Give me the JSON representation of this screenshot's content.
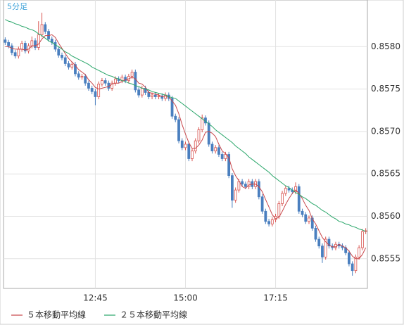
{
  "chart_data": {
    "type": "candlestick",
    "title": "5分足",
    "x": [
      "10:30",
      "10:35",
      "10:40",
      "10:45",
      "10:50",
      "10:55",
      "11:00",
      "11:05",
      "11:10",
      "11:15",
      "11:20",
      "11:25",
      "11:30",
      "11:35",
      "11:40",
      "11:45",
      "11:50",
      "11:55",
      "12:00",
      "12:05",
      "12:10",
      "12:15",
      "12:20",
      "12:25",
      "12:30",
      "12:35",
      "12:40",
      "12:45",
      "12:50",
      "12:55",
      "13:00",
      "13:05",
      "13:10",
      "13:15",
      "13:20",
      "13:25",
      "13:30",
      "13:35",
      "13:40",
      "13:45",
      "13:50",
      "13:55",
      "14:00",
      "14:05",
      "14:10",
      "14:15",
      "14:20",
      "14:25",
      "14:30",
      "14:35",
      "14:40",
      "14:45",
      "14:50",
      "14:55",
      "15:00",
      "15:05",
      "15:10",
      "15:15",
      "15:20",
      "15:25",
      "15:30",
      "15:35",
      "15:40",
      "15:45",
      "15:50",
      "15:55",
      "16:00",
      "16:05",
      "16:10",
      "16:15",
      "16:20",
      "16:25",
      "16:30",
      "16:35",
      "16:40",
      "16:45",
      "16:50",
      "16:55",
      "17:00",
      "17:05",
      "17:10",
      "17:15",
      "17:20",
      "17:25",
      "17:30",
      "17:35",
      "17:40",
      "17:45",
      "17:50",
      "17:55",
      "18:00",
      "18:05",
      "18:10",
      "18:15",
      "18:20",
      "18:25",
      "18:30",
      "18:35",
      "18:40",
      "18:45",
      "18:50",
      "18:55",
      "19:00",
      "19:05",
      "19:10",
      "19:15",
      "19:20",
      "19:25",
      "19:30"
    ],
    "open": [
      0.85808,
      0.85805,
      0.85801,
      0.85793,
      0.85789,
      0.85797,
      0.85804,
      0.85795,
      0.85801,
      0.85807,
      0.85799,
      0.85814,
      0.85826,
      0.85818,
      0.85809,
      0.85805,
      0.85797,
      0.8579,
      0.85787,
      0.8578,
      0.85776,
      0.85779,
      0.85768,
      0.85764,
      0.85765,
      0.85757,
      0.85751,
      0.85747,
      0.85741,
      0.85756,
      0.8576,
      0.85757,
      0.85751,
      0.85757,
      0.85762,
      0.8576,
      0.85764,
      0.8576,
      0.85765,
      0.8577,
      0.85749,
      0.85743,
      0.85751,
      0.85746,
      0.85741,
      0.85743,
      0.85741,
      0.85742,
      0.85739,
      0.85743,
      0.85739,
      0.85718,
      0.85714,
      0.85689,
      0.85681,
      0.85685,
      0.85668,
      0.85677,
      0.85689,
      0.85702,
      0.85716,
      0.8571,
      0.85685,
      0.85677,
      0.85681,
      0.85673,
      0.85668,
      0.85673,
      0.85648,
      0.85619,
      0.85631,
      0.85641,
      0.85638,
      0.85635,
      0.85641,
      0.85635,
      0.85641,
      0.85623,
      0.85606,
      0.85594,
      0.85591,
      0.85596,
      0.856,
      0.85615,
      0.85627,
      0.85633,
      0.85631,
      0.85629,
      0.85635,
      0.85606,
      0.85602,
      0.85594,
      0.85598,
      0.85586,
      0.85573,
      0.85565,
      0.85552,
      0.85573,
      0.85565,
      0.85563,
      0.85567,
      0.85565,
      0.85563,
      0.85557,
      0.85544,
      0.85536,
      0.85552,
      0.85563,
      0.85582
    ],
    "high": [
      0.85811,
      0.85808,
      0.85804,
      0.85796,
      0.858,
      0.85807,
      0.85807,
      0.85804,
      0.85812,
      0.8581,
      0.8583,
      0.8584,
      0.85829,
      0.85821,
      0.85812,
      0.85808,
      0.858,
      0.85793,
      0.8579,
      0.85783,
      0.85782,
      0.85782,
      0.85771,
      0.85768,
      0.85768,
      0.8576,
      0.85754,
      0.8575,
      0.85759,
      0.85763,
      0.85763,
      0.8576,
      0.8576,
      0.85765,
      0.85765,
      0.85767,
      0.85767,
      0.85768,
      0.85773,
      0.85773,
      0.85752,
      0.85754,
      0.85754,
      0.85749,
      0.85746,
      0.85746,
      0.85745,
      0.85745,
      0.85746,
      0.85746,
      0.85742,
      0.85721,
      0.85717,
      0.85692,
      0.85688,
      0.85688,
      0.8568,
      0.85692,
      0.85705,
      0.8572,
      0.85719,
      0.85713,
      0.85688,
      0.85684,
      0.85684,
      0.85676,
      0.85676,
      0.85676,
      0.85651,
      0.85634,
      0.85644,
      0.85644,
      0.85641,
      0.85644,
      0.85644,
      0.85644,
      0.85644,
      0.85626,
      0.85609,
      0.85597,
      0.85599,
      0.85603,
      0.85618,
      0.8563,
      0.85636,
      0.85636,
      0.85634,
      0.8564,
      0.85638,
      0.85609,
      0.85605,
      0.85601,
      0.85601,
      0.85589,
      0.85576,
      0.85568,
      0.85576,
      0.85576,
      0.85568,
      0.8557,
      0.8557,
      0.85568,
      0.85566,
      0.8556,
      0.85547,
      0.85555,
      0.85566,
      0.85585,
      0.85586
    ],
    "low": [
      0.85802,
      0.85798,
      0.8579,
      0.85786,
      0.85786,
      0.85794,
      0.85792,
      0.85792,
      0.85798,
      0.85796,
      0.85796,
      0.85811,
      0.85815,
      0.85806,
      0.85802,
      0.85794,
      0.85787,
      0.85784,
      0.85777,
      0.85773,
      0.85773,
      0.85765,
      0.85761,
      0.85761,
      0.85754,
      0.85748,
      0.85744,
      0.85731,
      0.85738,
      0.85753,
      0.85754,
      0.85748,
      0.85748,
      0.85754,
      0.85757,
      0.85757,
      0.85757,
      0.85757,
      0.85762,
      0.85746,
      0.8574,
      0.8574,
      0.85743,
      0.85738,
      0.85738,
      0.85738,
      0.85738,
      0.85736,
      0.85736,
      0.85736,
      0.85715,
      0.85711,
      0.85686,
      0.85678,
      0.85678,
      0.85665,
      0.85665,
      0.85674,
      0.85686,
      0.85699,
      0.85707,
      0.85682,
      0.85674,
      0.85674,
      0.8567,
      0.85665,
      0.85665,
      0.85645,
      0.8561,
      0.85616,
      0.85628,
      0.85635,
      0.85632,
      0.85632,
      0.85632,
      0.85632,
      0.8562,
      0.85603,
      0.85591,
      0.85588,
      0.85588,
      0.85593,
      0.85597,
      0.85612,
      0.85624,
      0.85628,
      0.85626,
      0.85626,
      0.85603,
      0.85599,
      0.85591,
      0.85591,
      0.85583,
      0.8557,
      0.85562,
      0.85545,
      0.85549,
      0.85562,
      0.8556,
      0.8556,
      0.85562,
      0.8556,
      0.85554,
      0.85541,
      0.8553,
      0.85533,
      0.85549,
      0.8556,
      0.85579
    ],
    "close": [
      0.85805,
      0.85801,
      0.85793,
      0.85789,
      0.85797,
      0.85804,
      0.85795,
      0.85801,
      0.85807,
      0.85799,
      0.85814,
      0.85826,
      0.85818,
      0.85809,
      0.85805,
      0.85797,
      0.8579,
      0.85787,
      0.8578,
      0.85776,
      0.85779,
      0.85768,
      0.85764,
      0.85765,
      0.85757,
      0.85751,
      0.85747,
      0.85741,
      0.85756,
      0.8576,
      0.85757,
      0.85751,
      0.85757,
      0.85762,
      0.8576,
      0.85764,
      0.8576,
      0.85765,
      0.8577,
      0.85749,
      0.85743,
      0.85751,
      0.85746,
      0.85741,
      0.85743,
      0.85741,
      0.85742,
      0.85739,
      0.85743,
      0.85739,
      0.85718,
      0.85714,
      0.85689,
      0.85681,
      0.85685,
      0.85668,
      0.85677,
      0.85689,
      0.85702,
      0.85716,
      0.8571,
      0.85685,
      0.85677,
      0.85681,
      0.85673,
      0.85668,
      0.85673,
      0.85648,
      0.85619,
      0.85631,
      0.85641,
      0.85638,
      0.85635,
      0.85641,
      0.85635,
      0.85641,
      0.85623,
      0.85606,
      0.85594,
      0.85591,
      0.85596,
      0.856,
      0.85615,
      0.85627,
      0.85633,
      0.85631,
      0.85629,
      0.85635,
      0.85606,
      0.85602,
      0.85594,
      0.85598,
      0.85586,
      0.85573,
      0.85565,
      0.85552,
      0.85573,
      0.85565,
      0.85563,
      0.85567,
      0.85565,
      0.85563,
      0.85557,
      0.85544,
      0.85536,
      0.85552,
      0.85563,
      0.85582,
      0.85583
    ],
    "up_color": "#d9534f",
    "down_color": "#4a7fbf",
    "series": [
      {
        "name": "５本移動平均線",
        "color": "#c8464a",
        "values": [
          0.858,
          0.858,
          0.85798,
          0.85797,
          0.85797,
          0.85797,
          0.85796,
          0.85797,
          0.85801,
          0.85801,
          0.85803,
          0.85809,
          0.85813,
          0.85813,
          0.85814,
          0.85811,
          0.85804,
          0.85798,
          0.85792,
          0.85786,
          0.85782,
          0.85778,
          0.85773,
          0.8577,
          0.85767,
          0.85761,
          0.85757,
          0.85752,
          0.8575,
          0.85751,
          0.85752,
          0.85753,
          0.85756,
          0.85757,
          0.85757,
          0.85759,
          0.85761,
          0.85762,
          0.85764,
          0.85762,
          0.85757,
          0.85756,
          0.85752,
          0.85746,
          0.85745,
          0.85744,
          0.85743,
          0.85741,
          0.85742,
          0.85741,
          0.85736,
          0.85731,
          0.85721,
          0.85708,
          0.85697,
          0.85687,
          0.8568,
          0.8568,
          0.85684,
          0.8569,
          0.85699,
          0.857,
          0.85698,
          0.85694,
          0.85685,
          0.85677,
          0.85674,
          0.85669,
          0.85656,
          0.85648,
          0.85642,
          0.85635,
          0.85633,
          0.85637,
          0.85638,
          0.85638,
          0.85635,
          0.85629,
          0.8562,
          0.85611,
          0.85602,
          0.85597,
          0.85599,
          0.85606,
          0.85614,
          0.85621,
          0.85627,
          0.85631,
          0.85627,
          0.85621,
          0.85613,
          0.85607,
          0.85597,
          0.85591,
          0.85583,
          0.85575,
          0.8557,
          0.85566,
          0.85564,
          0.85564,
          0.85567,
          0.85565,
          0.85563,
          0.85559,
          0.85553,
          0.8555,
          0.8555,
          0.85555,
          0.85563
        ]
      },
      {
        "name": "２５本移動平均線",
        "color": "#2aa66a",
        "values": [
          0.85832,
          0.8583,
          0.85829,
          0.85827,
          0.85826,
          0.85824,
          0.85823,
          0.85821,
          0.8582,
          0.85818,
          0.85815,
          0.85813,
          0.8581,
          0.85807,
          0.85805,
          0.85802,
          0.858,
          0.85797,
          0.85794,
          0.85792,
          0.85789,
          0.85787,
          0.85785,
          0.85783,
          0.85781,
          0.85779,
          0.85776,
          0.85774,
          0.85772,
          0.8577,
          0.85768,
          0.85766,
          0.85765,
          0.85763,
          0.85762,
          0.8576,
          0.85759,
          0.85757,
          0.85756,
          0.85754,
          0.85753,
          0.85751,
          0.8575,
          0.85749,
          0.85747,
          0.85746,
          0.85745,
          0.85744,
          0.85743,
          0.85741,
          0.8574,
          0.85739,
          0.85736,
          0.85733,
          0.8573,
          0.85727,
          0.85724,
          0.85721,
          0.85718,
          0.85715,
          0.85712,
          0.85709,
          0.85706,
          0.85702,
          0.85699,
          0.85696,
          0.85693,
          0.8569,
          0.85687,
          0.85683,
          0.8568,
          0.85677,
          0.85674,
          0.8567,
          0.85667,
          0.85664,
          0.85661,
          0.85658,
          0.85655,
          0.85652,
          0.85648,
          0.85645,
          0.85642,
          0.85639,
          0.85636,
          0.85634,
          0.85631,
          0.85628,
          0.85626,
          0.85623,
          0.85621,
          0.85618,
          0.85615,
          0.85613,
          0.8561,
          0.85607,
          0.85605,
          0.85602,
          0.85599,
          0.85597,
          0.85594,
          0.85593,
          0.85591,
          0.8559,
          0.85588,
          0.85587,
          0.85585,
          0.85584,
          0.85582
        ]
      }
    ],
    "ylim": [
      0.85515,
      0.85855
    ],
    "yticks": [
      0.8555,
      {
        "value": 0.856,
        "label": "0.8560"
      },
      0.8565,
      {
        "value": 0.857,
        "label": "0.8570"
      },
      0.8575,
      {
        "value": 0.858,
        "label": "0.8580"
      }
    ],
    "xticks": [
      "12:45",
      "15:00",
      "17:15"
    ],
    "grid": true
  }
}
